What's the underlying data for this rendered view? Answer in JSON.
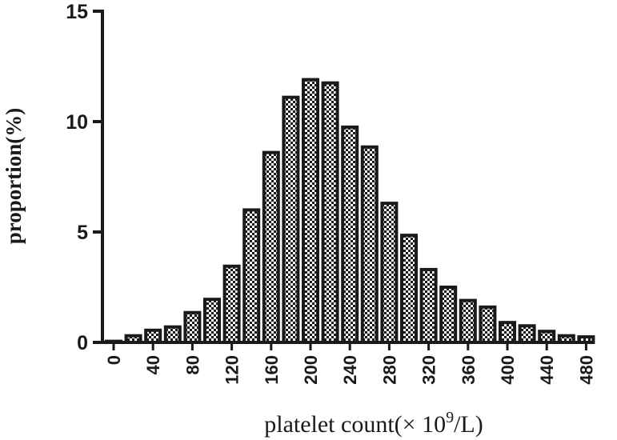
{
  "chart_data": {
    "type": "bar",
    "xlabel_prefix": "platelet count(× 10",
    "xlabel_sup": "9",
    "xlabel_suffix": "/L)",
    "ylabel": "proportion(%)",
    "ylim": [
      0,
      15
    ],
    "yticks": [
      0,
      5,
      10,
      15
    ],
    "xticks": [
      0,
      40,
      80,
      120,
      160,
      200,
      240,
      280,
      320,
      360,
      400,
      440,
      480
    ],
    "bar_fill_color": "#1a1a1a",
    "bar_pattern": "checkerboard",
    "categories": [
      0,
      20,
      40,
      60,
      80,
      100,
      120,
      140,
      160,
      180,
      200,
      220,
      240,
      260,
      280,
      300,
      320,
      340,
      360,
      380,
      400,
      420,
      440,
      460,
      480
    ],
    "values": [
      0.05,
      0.3,
      0.55,
      0.7,
      1.35,
      1.95,
      3.45,
      6.0,
      8.6,
      11.1,
      11.9,
      11.75,
      9.75,
      8.85,
      6.3,
      4.85,
      3.3,
      2.5,
      1.9,
      1.6,
      0.9,
      0.75,
      0.5,
      0.3,
      0.25
    ],
    "grid": false,
    "legend": "none"
  }
}
